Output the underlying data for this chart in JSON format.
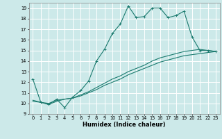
{
  "title": "",
  "xlabel": "Humidex (Indice chaleur)",
  "ylabel": "",
  "bg_color": "#cce9e9",
  "grid_color": "#ffffff",
  "line_color": "#1a7a6e",
  "xlim": [
    -0.5,
    23.5
  ],
  "ylim": [
    9,
    19.5
  ],
  "yticks": [
    9,
    10,
    11,
    12,
    13,
    14,
    15,
    16,
    17,
    18,
    19
  ],
  "xticks": [
    0,
    1,
    2,
    3,
    4,
    5,
    6,
    7,
    8,
    9,
    10,
    11,
    12,
    13,
    14,
    15,
    16,
    17,
    18,
    19,
    20,
    21,
    22,
    23
  ],
  "line1_x": [
    0,
    1,
    2,
    3,
    4,
    5,
    6,
    7,
    8,
    9,
    10,
    11,
    12,
    13,
    14,
    15,
    16,
    17,
    18,
    19,
    20,
    21,
    22,
    23
  ],
  "line1_y": [
    12.3,
    10.1,
    9.9,
    10.4,
    9.6,
    10.6,
    11.2,
    12.1,
    14.0,
    15.1,
    16.6,
    17.5,
    19.2,
    18.1,
    18.2,
    19.0,
    19.0,
    18.1,
    18.3,
    18.7,
    16.3,
    15.0,
    15.0,
    14.9
  ],
  "line2_x": [
    0,
    1,
    2,
    3,
    4,
    5,
    6,
    7,
    8,
    9,
    10,
    11,
    12,
    13,
    14,
    15,
    16,
    17,
    18,
    19,
    20,
    21,
    22,
    23
  ],
  "line2_y": [
    10.3,
    10.1,
    10.0,
    10.3,
    10.4,
    10.5,
    10.8,
    11.1,
    11.5,
    11.9,
    12.3,
    12.6,
    13.0,
    13.3,
    13.6,
    14.0,
    14.3,
    14.5,
    14.7,
    14.9,
    15.0,
    15.1,
    15.0,
    14.9
  ],
  "line3_x": [
    0,
    1,
    2,
    3,
    4,
    5,
    6,
    7,
    8,
    9,
    10,
    11,
    12,
    13,
    14,
    15,
    16,
    17,
    18,
    19,
    20,
    21,
    22,
    23
  ],
  "line3_y": [
    10.2,
    10.1,
    9.9,
    10.2,
    10.4,
    10.5,
    10.7,
    11.0,
    11.3,
    11.7,
    12.0,
    12.3,
    12.7,
    13.0,
    13.3,
    13.6,
    13.9,
    14.1,
    14.3,
    14.5,
    14.6,
    14.7,
    14.8,
    14.9
  ],
  "xlabel_fontsize": 6.0,
  "tick_fontsize": 4.8,
  "linewidth": 0.8,
  "marker_size": 2.5
}
